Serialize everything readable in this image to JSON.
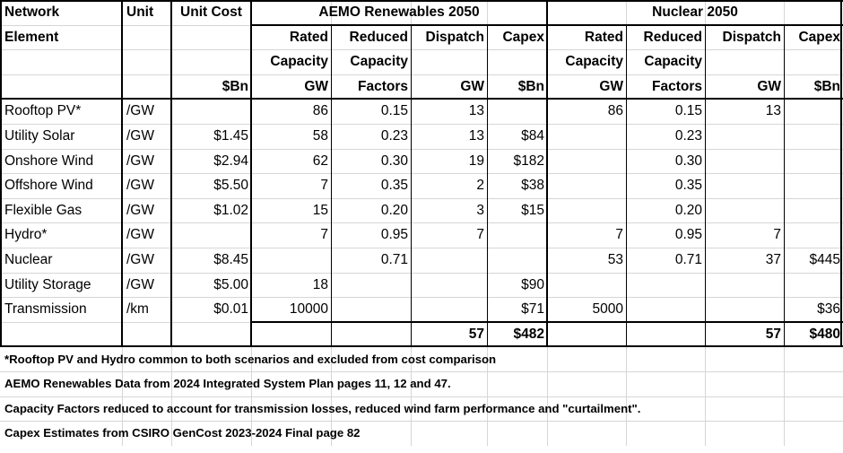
{
  "header": {
    "network_element": [
      "Network",
      "Element"
    ],
    "unit": "Unit",
    "unit_cost": "Unit Cost",
    "unit_cost_units": "$Bn",
    "aemo_title": "AEMO Renewables 2050",
    "nuclear_title": "Nuclear 2050",
    "aemo_cols": [
      {
        "lines": [
          "Rated",
          "Capacity",
          "GW"
        ]
      },
      {
        "lines": [
          "Reduced",
          "Capacity",
          "Factors"
        ]
      },
      {
        "lines": [
          "Dispatch",
          "",
          "GW"
        ]
      },
      {
        "lines": [
          "Capex",
          "",
          "$Bn"
        ]
      }
    ],
    "nuclear_cols": [
      {
        "lines": [
          "Rated",
          "Capacity",
          "GW"
        ]
      },
      {
        "lines": [
          "Reduced",
          "Capacity",
          "Factors"
        ]
      },
      {
        "lines": [
          "Dispatch",
          "",
          "GW"
        ]
      },
      {
        "lines": [
          "Capex",
          "",
          "$Bn"
        ]
      }
    ]
  },
  "rows": [
    {
      "element": "Rooftop PV*",
      "unit": "/GW",
      "cost": "",
      "a_cap": "86",
      "a_cf": "0.15",
      "a_disp": "13",
      "a_capex": "",
      "n_cap": "86",
      "n_cf": "0.15",
      "n_disp": "13",
      "n_capex": ""
    },
    {
      "element": "Utility Solar",
      "unit": "/GW",
      "cost": "$1.45",
      "a_cap": "58",
      "a_cf": "0.23",
      "a_disp": "13",
      "a_capex": "$84",
      "n_cap": "",
      "n_cf": "0.23",
      "n_disp": "",
      "n_capex": ""
    },
    {
      "element": "Onshore Wind",
      "unit": "/GW",
      "cost": "$2.94",
      "a_cap": "62",
      "a_cf": "0.30",
      "a_disp": "19",
      "a_capex": "$182",
      "n_cap": "",
      "n_cf": "0.30",
      "n_disp": "",
      "n_capex": ""
    },
    {
      "element": "Offshore Wind",
      "unit": "/GW",
      "cost": "$5.50",
      "a_cap": "7",
      "a_cf": "0.35",
      "a_disp": "2",
      "a_capex": "$38",
      "n_cap": "",
      "n_cf": "0.35",
      "n_disp": "",
      "n_capex": ""
    },
    {
      "element": "Flexible Gas",
      "unit": "/GW",
      "cost": "$1.02",
      "a_cap": "15",
      "a_cf": "0.20",
      "a_disp": "3",
      "a_capex": "$15",
      "n_cap": "",
      "n_cf": "0.20",
      "n_disp": "",
      "n_capex": ""
    },
    {
      "element": "Hydro*",
      "unit": "/GW",
      "cost": "",
      "a_cap": "7",
      "a_cf": "0.95",
      "a_disp": "7",
      "a_capex": "",
      "n_cap": "7",
      "n_cf": "0.95",
      "n_disp": "7",
      "n_capex": ""
    },
    {
      "element": "Nuclear",
      "unit": "/GW",
      "cost": "$8.45",
      "a_cap": "",
      "a_cf": "0.71",
      "a_disp": "",
      "a_capex": "",
      "n_cap": "53",
      "n_cf": "0.71",
      "n_disp": "37",
      "n_capex": "$445"
    },
    {
      "element": "Utility Storage",
      "unit": "/GW",
      "cost": "$5.00",
      "a_cap": "18",
      "a_cf": "",
      "a_disp": "",
      "a_capex": "$90",
      "n_cap": "",
      "n_cf": "",
      "n_disp": "",
      "n_capex": ""
    },
    {
      "element": "Transmission",
      "unit": "/km",
      "cost": "$0.01",
      "a_cap": "10000",
      "a_cf": "",
      "a_disp": "",
      "a_capex": "$71",
      "n_cap": "5000",
      "n_cf": "",
      "n_disp": "",
      "n_capex": "$36"
    }
  ],
  "totals": {
    "a_disp": "57",
    "a_capex": "$482",
    "n_disp": "57",
    "n_capex": "$480"
  },
  "notes": [
    "*Rooftop PV and Hydro common to both scenarios and excluded from cost comparison",
    "AEMO Renewables Data from 2024 Integrated System Plan pages 11, 12 and 47.",
    "Capacity Factors reduced to account for transmission losses, reduced wind farm performance and \"curtailment\".",
    "Capex Estimates from CSIRO GenCost 2023-2024 Final page 82"
  ]
}
